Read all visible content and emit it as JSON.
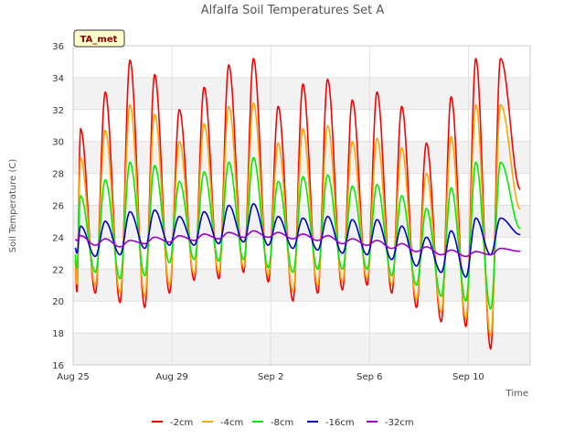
{
  "chart_data": {
    "type": "line",
    "title": "Alfalfa Soil Temperatures Set A",
    "xlabel": "Time",
    "ylabel": "Soil Temperature (C)",
    "badge": "TA_met",
    "ylim": [
      16,
      36
    ],
    "y_ticks": [
      16,
      18,
      20,
      22,
      24,
      26,
      28,
      30,
      32,
      34,
      36
    ],
    "xlim": [
      0,
      18.5
    ],
    "x_ticks": [
      {
        "value": 0,
        "label": "Aug 25"
      },
      {
        "value": 4,
        "label": "Aug 29"
      },
      {
        "value": 8,
        "label": "Sep 2"
      },
      {
        "value": 12,
        "label": "Sep 6"
      },
      {
        "value": 16,
        "label": "Sep 10"
      }
    ],
    "grid": true,
    "legend_position": "bottom",
    "daily_x": [
      0.3,
      1.3,
      2.3,
      3.3,
      4.3,
      5.3,
      6.3,
      7.3,
      8.3,
      9.3,
      10.3,
      11.3,
      12.3,
      13.3,
      14.3,
      15.3,
      16.3,
      17.3
    ],
    "series": [
      {
        "name": "-2cm",
        "color": "#ff0000",
        "daily_min": [
          20.5,
          20.5,
          19.9,
          19.6,
          20.5,
          21.3,
          21.4,
          21.8,
          21.2,
          20.0,
          20.5,
          20.7,
          21.0,
          20.5,
          19.6,
          18.7,
          18.4,
          17.0
        ],
        "daily_max": [
          30.8,
          33.1,
          35.1,
          34.2,
          32.0,
          33.4,
          34.8,
          35.2,
          32.2,
          33.6,
          33.9,
          32.6,
          33.1,
          32.2,
          29.9,
          32.8,
          35.2,
          35.2
        ]
      },
      {
        "name": "-4cm",
        "color": "#ffa500",
        "daily_min": [
          21.0,
          21.0,
          20.5,
          20.3,
          21.0,
          21.7,
          21.8,
          22.1,
          21.6,
          20.6,
          21.0,
          21.2,
          21.4,
          21.0,
          20.1,
          19.3,
          18.9,
          17.8
        ],
        "daily_max": [
          29.0,
          30.7,
          32.3,
          31.7,
          30.0,
          31.1,
          32.2,
          32.4,
          29.9,
          30.8,
          31.0,
          30.0,
          30.2,
          29.6,
          28.0,
          30.3,
          32.3,
          32.3
        ]
      },
      {
        "name": "-8cm",
        "color": "#00ee00",
        "daily_min": [
          22.0,
          21.8,
          21.4,
          21.6,
          22.4,
          22.6,
          22.5,
          22.6,
          22.1,
          21.8,
          22.0,
          22.0,
          22.0,
          21.6,
          21.0,
          20.3,
          20.0,
          19.5
        ],
        "daily_max": [
          26.6,
          27.6,
          28.7,
          28.5,
          27.5,
          28.1,
          28.7,
          29.0,
          27.5,
          27.8,
          27.9,
          27.2,
          27.3,
          26.6,
          25.8,
          27.1,
          28.7,
          28.7
        ]
      },
      {
        "name": "-16cm",
        "color": "#0000cc",
        "daily_min": [
          23.0,
          22.8,
          22.9,
          23.3,
          23.5,
          23.5,
          23.6,
          23.7,
          23.5,
          23.3,
          23.2,
          23.0,
          22.9,
          22.6,
          22.2,
          21.8,
          21.5,
          22.9
        ],
        "daily_max": [
          24.7,
          25.0,
          25.6,
          25.7,
          25.3,
          25.6,
          26.0,
          26.1,
          25.3,
          25.2,
          25.3,
          25.1,
          25.1,
          24.7,
          24.0,
          24.4,
          25.2,
          25.2
        ]
      },
      {
        "name": "-32cm",
        "color": "#9900cc",
        "daily_min": [
          23.8,
          23.5,
          23.4,
          23.6,
          23.7,
          23.8,
          23.9,
          24.0,
          24.0,
          23.9,
          23.8,
          23.6,
          23.5,
          23.3,
          23.1,
          22.9,
          22.8,
          22.9
        ],
        "daily_max": [
          24.1,
          23.9,
          23.8,
          24.0,
          24.1,
          24.2,
          24.3,
          24.4,
          24.3,
          24.2,
          24.1,
          23.9,
          23.8,
          23.6,
          23.4,
          23.2,
          23.1,
          23.3
        ]
      }
    ]
  }
}
